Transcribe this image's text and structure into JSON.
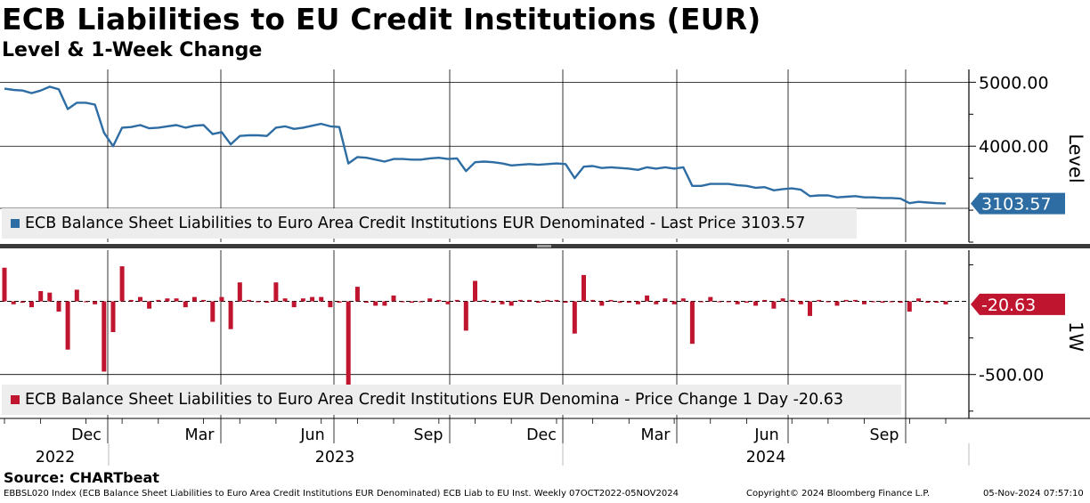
{
  "header": {
    "title": "ECB Liabilities to EU Credit Institutions (EUR)",
    "subtitle": "Level & 1-Week Change"
  },
  "colors": {
    "level": "#2e6da4",
    "change": "#c0152f",
    "grid": "#000000",
    "legend_bg": "#ededed"
  },
  "footer": {
    "source": "Source: CHARTbeat",
    "ticker_info": "EBBSL020 Index (ECB Balance Sheet Liabilities to Euro Area Credit Institutions EUR Denominated) ECB Liab to EU Inst.  Weekly 07OCT2022-05NOV2024",
    "copyright": "Copyright© 2024 Bloomberg Finance L.P.",
    "timestamp": "05-Nov-2024 07:57:10"
  },
  "chart_data": [
    {
      "type": "line",
      "panel": "top",
      "axis_label": "Level",
      "ylim": [
        2500,
        5200
      ],
      "yticks": [
        4000,
        5000
      ],
      "ytick_labels": [
        "4000.00",
        "5000.00"
      ],
      "last_value_label": "3103.57",
      "legend": "ECB Balance Sheet Liabilities to Euro Area Credit Institutions EUR Denominated - Last Price 3103.57",
      "series": [
        {
          "name": "ECB Balance Sheet Liabilities to Euro Area Credit Institutions EUR Denominated",
          "values": [
            4900,
            4880,
            4870,
            4830,
            4870,
            4930,
            4890,
            4580,
            4680,
            4680,
            4650,
            4210,
            4000,
            4290,
            4300,
            4330,
            4280,
            4290,
            4310,
            4330,
            4290,
            4320,
            4330,
            4190,
            4220,
            4030,
            4160,
            4170,
            4170,
            4160,
            4290,
            4310,
            4270,
            4290,
            4320,
            4350,
            4310,
            4300,
            3730,
            3830,
            3820,
            3790,
            3760,
            3800,
            3800,
            3790,
            3790,
            3810,
            3820,
            3800,
            3810,
            3610,
            3750,
            3760,
            3750,
            3730,
            3700,
            3710,
            3720,
            3710,
            3720,
            3730,
            3720,
            3500,
            3680,
            3690,
            3660,
            3670,
            3660,
            3650,
            3630,
            3670,
            3650,
            3670,
            3650,
            3670,
            3380,
            3380,
            3410,
            3410,
            3410,
            3390,
            3380,
            3350,
            3360,
            3310,
            3330,
            3340,
            3320,
            3220,
            3230,
            3230,
            3200,
            3210,
            3220,
            3200,
            3200,
            3190,
            3190,
            3180,
            3110,
            3130,
            3120,
            3110,
            3103.57
          ]
        }
      ]
    },
    {
      "type": "bar",
      "panel": "bottom",
      "axis_label": "1W",
      "ylim": [
        -800,
        350
      ],
      "yticks": [
        -500
      ],
      "ytick_labels": [
        "-500.00"
      ],
      "last_value_label": "-20.63",
      "legend": "ECB Balance Sheet Liabilities to Euro Area Credit Institutions EUR Denomina - Price Change 1 Day -20.63",
      "series": [
        {
          "name": "Price Change 1 Day",
          "values": [
            230,
            -20,
            -10,
            -40,
            70,
            60,
            -70,
            -330,
            80,
            0,
            -20,
            -480,
            -210,
            240,
            10,
            30,
            -50,
            10,
            20,
            20,
            -40,
            30,
            10,
            -140,
            30,
            -190,
            130,
            10,
            0,
            -10,
            130,
            20,
            -40,
            20,
            30,
            30,
            -40,
            -10,
            -570,
            100,
            -10,
            -30,
            -30,
            40,
            0,
            -10,
            0,
            20,
            10,
            -20,
            10,
            -200,
            140,
            10,
            -10,
            -20,
            -30,
            10,
            10,
            -10,
            10,
            10,
            -10,
            -220,
            180,
            10,
            -30,
            10,
            -10,
            -10,
            -20,
            40,
            -20,
            20,
            -20,
            20,
            -290,
            0,
            30,
            0,
            0,
            -20,
            -10,
            -30,
            10,
            -50,
            20,
            10,
            -20,
            -100,
            10,
            0,
            -30,
            10,
            10,
            -20,
            0,
            -10,
            0,
            -10,
            -70,
            20,
            -10,
            -10,
            -20.63
          ]
        }
      ]
    },
    {
      "type": "axis",
      "x_month_labels": [
        "Dec",
        "Mar",
        "Jun",
        "Sep",
        "Dec",
        "Mar",
        "Jun",
        "Sep"
      ],
      "x_year_labels": [
        "2022",
        "2023",
        "2024"
      ]
    }
  ]
}
